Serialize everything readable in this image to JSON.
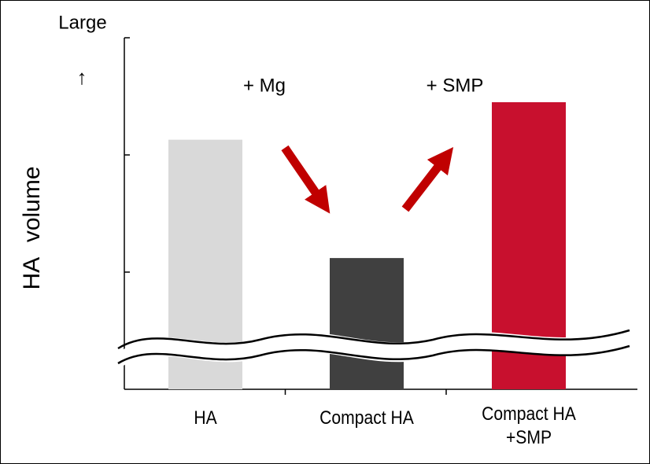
{
  "chart_data": {
    "type": "bar",
    "ylabel": "HA volume",
    "categories": [
      "HA",
      "Compact HA",
      "Compact HA\n+SMP"
    ],
    "series": [
      {
        "values": [
          2.13,
          1.12,
          2.45
        ],
        "colors": [
          "#d9d9d9",
          "#404040",
          "#c8102e"
        ]
      }
    ],
    "ylim": [
      0,
      3
    ],
    "yticks": [
      1,
      2,
      3
    ],
    "annotations": [
      "Large",
      "↑",
      "+ Mg",
      "+ SMP"
    ],
    "grid": false
  }
}
